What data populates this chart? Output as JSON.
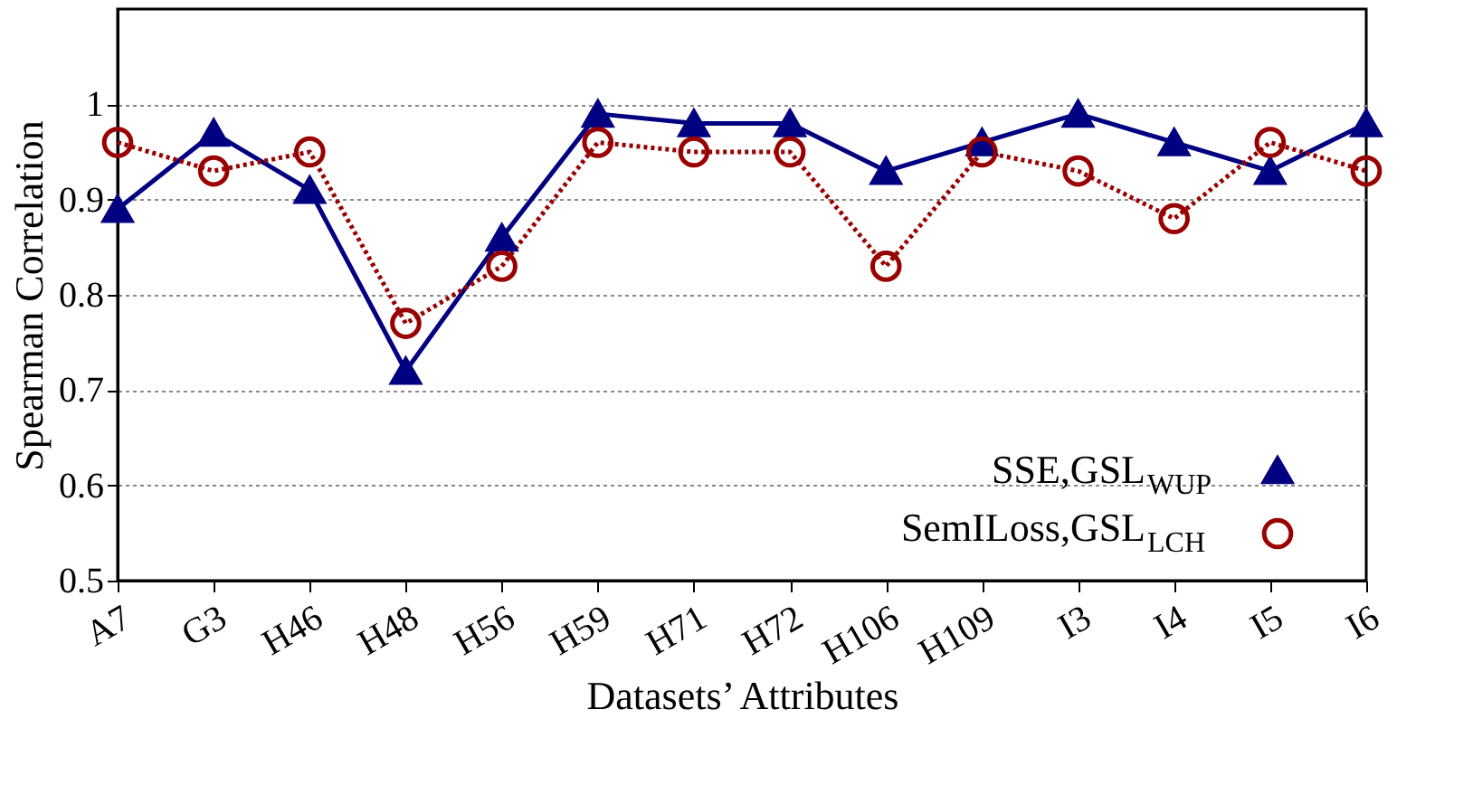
{
  "chart_data": {
    "type": "line",
    "xlabel": "Datasets’ Attributes",
    "ylabel": "Spearman Correlation",
    "categories": [
      "A7",
      "G3",
      "H46",
      "H48",
      "H56",
      "H59",
      "H71",
      "H72",
      "H106",
      "H109",
      "I3",
      "I4",
      "I5",
      "I6"
    ],
    "series": [
      {
        "name": "SSE,GSL$_{WUP}$",
        "color": "#000080",
        "marker": "triangle",
        "line_style": "solid",
        "values": [
          0.89,
          0.97,
          0.91,
          0.72,
          0.86,
          0.99,
          0.98,
          0.98,
          0.93,
          0.96,
          0.99,
          0.96,
          0.93,
          0.98
        ]
      },
      {
        "name": "SemILoss,GSL$_{LCH}$",
        "color": "#990000",
        "marker": "circle",
        "line_style": "dotted",
        "values": [
          0.96,
          0.93,
          0.95,
          0.77,
          0.83,
          0.96,
          0.95,
          0.95,
          0.83,
          0.95,
          0.93,
          0.88,
          0.96,
          0.93
        ]
      }
    ],
    "ylim": [
      0.5,
      1.1
    ],
    "yticks": [
      0.5,
      0.6,
      0.7,
      0.8,
      0.9,
      1
    ],
    "grid": "y",
    "legend": "bottom right"
  }
}
